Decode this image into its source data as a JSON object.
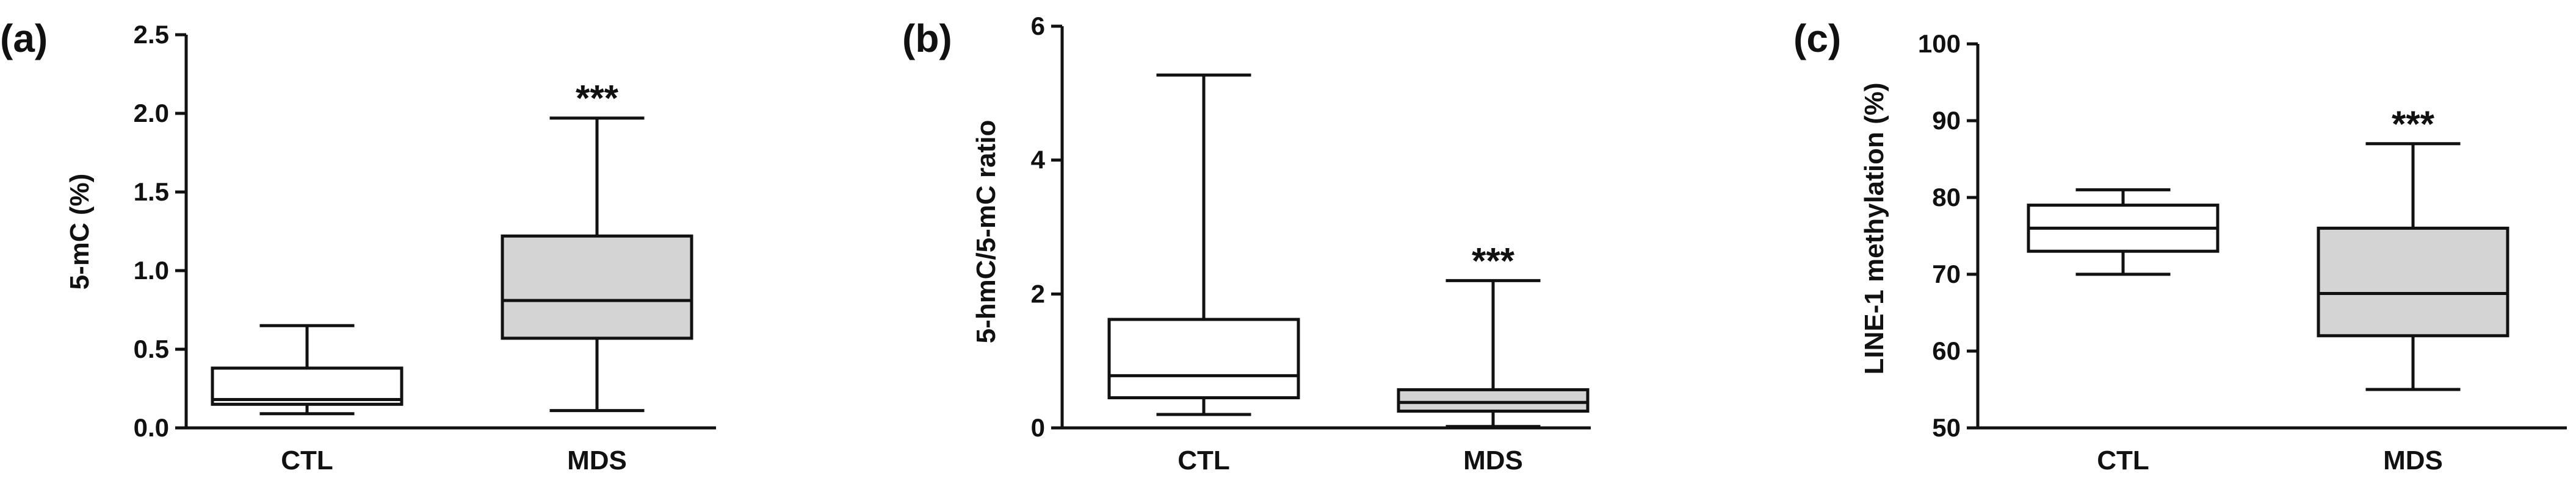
{
  "chart_data": [
    {
      "type": "boxplot",
      "panel_label": "(a)",
      "ylabel": "5-mC (%)",
      "ylim": [
        0,
        2.5
      ],
      "yticks": [
        0.0,
        0.5,
        1.0,
        1.5,
        2.0,
        2.5
      ],
      "ytick_labels": [
        "0.0",
        "0.5",
        "1.0",
        "1.5",
        "2.0",
        "2.5"
      ],
      "categories": [
        "CTL",
        "MDS"
      ],
      "boxes": [
        {
          "category": "CTL",
          "min": 0.09,
          "q1": 0.15,
          "median": 0.18,
          "q3": 0.38,
          "max": 0.65,
          "color": "#ffffff",
          "significance": ""
        },
        {
          "category": "MDS",
          "min": 0.11,
          "q1": 0.57,
          "median": 0.81,
          "q3": 1.22,
          "max": 1.97,
          "color": "#d4d4d4",
          "significance": "***"
        }
      ]
    },
    {
      "type": "boxplot",
      "panel_label": "(b)",
      "ylabel": "5-hmC/5-mC ratio",
      "ylim": [
        0,
        6
      ],
      "yticks": [
        0,
        2,
        4,
        6
      ],
      "ytick_labels": [
        "0",
        "2",
        "4",
        "6"
      ],
      "categories": [
        "CTL",
        "MDS"
      ],
      "boxes": [
        {
          "category": "CTL",
          "min": 0.2,
          "q1": 0.45,
          "median": 0.78,
          "q3": 1.62,
          "max": 5.27,
          "color": "#ffffff",
          "significance": ""
        },
        {
          "category": "MDS",
          "min": 0.02,
          "q1": 0.25,
          "median": 0.38,
          "q3": 0.57,
          "max": 2.2,
          "color": "#d4d4d4",
          "significance": "***"
        }
      ]
    },
    {
      "type": "boxplot",
      "panel_label": "(c)",
      "ylabel": "LINE-1 methylation (%)",
      "ylim": [
        50,
        100
      ],
      "yticks": [
        50,
        60,
        70,
        80,
        90,
        100
      ],
      "ytick_labels": [
        "50",
        "60",
        "70",
        "80",
        "90",
        "100"
      ],
      "categories": [
        "CTL",
        "MDS"
      ],
      "boxes": [
        {
          "category": "CTL",
          "min": 70,
          "q1": 73,
          "median": 76,
          "q3": 79,
          "max": 81,
          "color": "#ffffff",
          "significance": ""
        },
        {
          "category": "MDS",
          "min": 55,
          "q1": 62,
          "median": 67.5,
          "q3": 76,
          "max": 87,
          "color": "#d4d4d4",
          "significance": "***"
        }
      ]
    }
  ]
}
